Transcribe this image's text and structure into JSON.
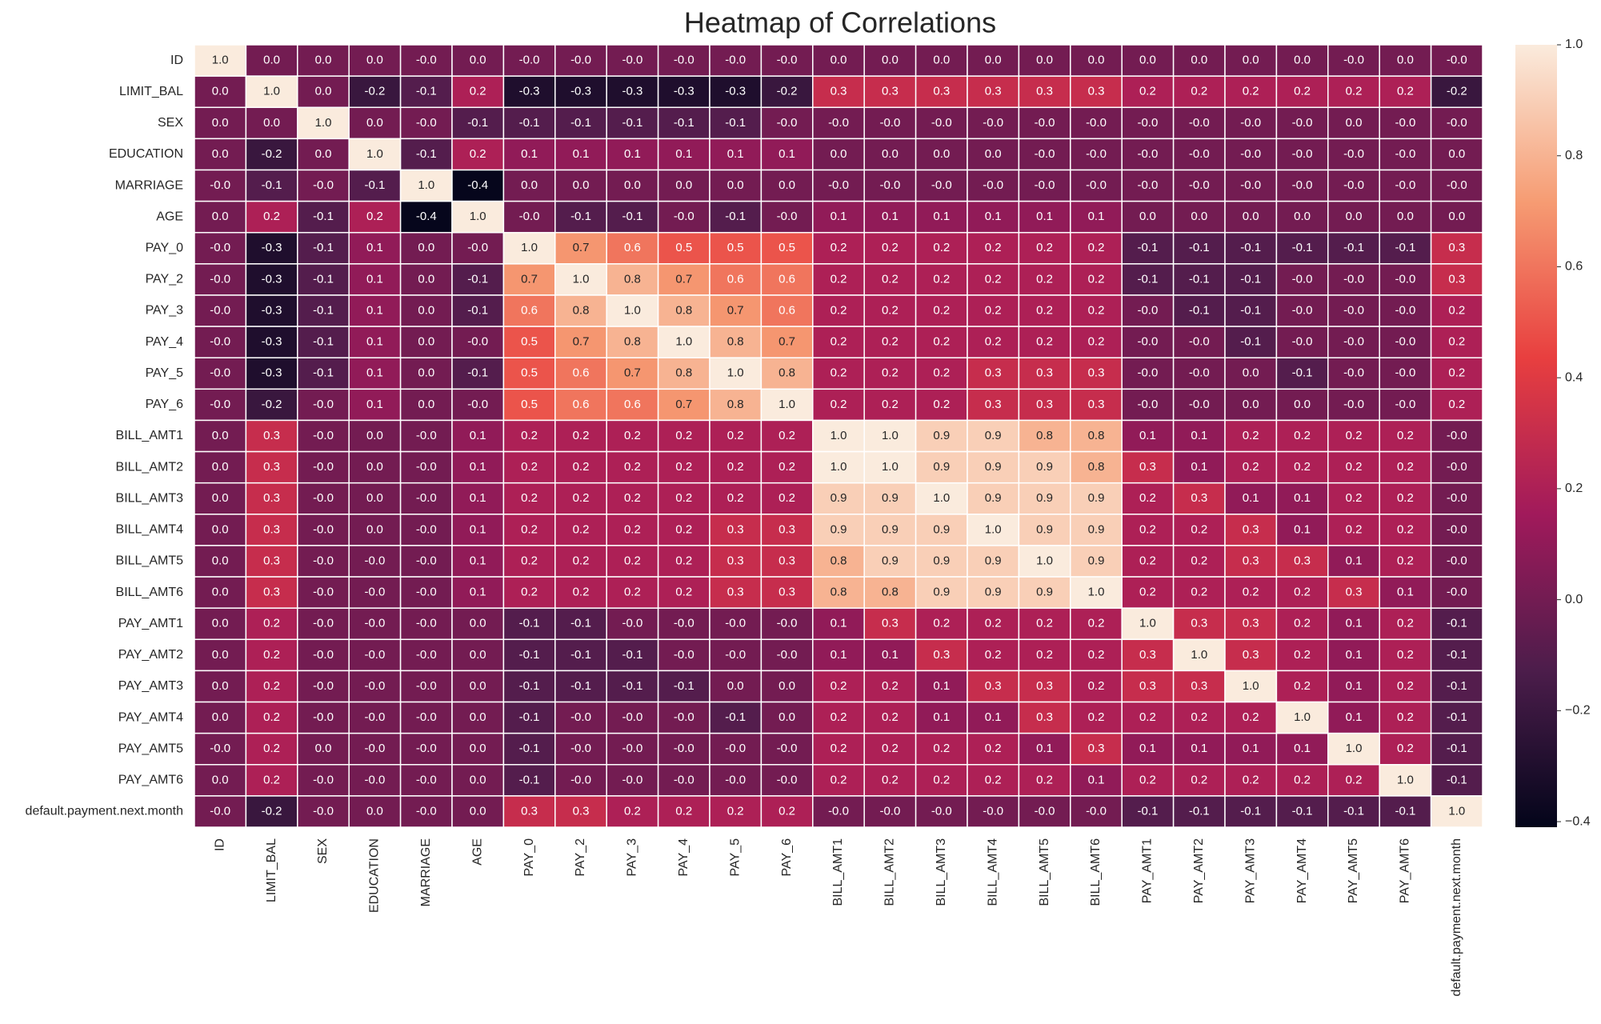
{
  "chart_data": {
    "type": "heatmap",
    "title": "Heatmap of Correlations",
    "categories": [
      "ID",
      "LIMIT_BAL",
      "SEX",
      "EDUCATION",
      "MARRIAGE",
      "AGE",
      "PAY_0",
      "PAY_2",
      "PAY_3",
      "PAY_4",
      "PAY_5",
      "PAY_6",
      "BILL_AMT1",
      "BILL_AMT2",
      "BILL_AMT3",
      "BILL_AMT4",
      "BILL_AMT5",
      "BILL_AMT6",
      "PAY_AMT1",
      "PAY_AMT2",
      "PAY_AMT3",
      "PAY_AMT4",
      "PAY_AMT5",
      "PAY_AMT6",
      "default.payment.next.month"
    ],
    "values": [
      [
        1.0,
        0.0,
        0.0,
        0.0,
        -0.0,
        0.0,
        -0.0,
        -0.0,
        -0.0,
        -0.0,
        -0.0,
        -0.0,
        0.0,
        0.0,
        0.0,
        0.0,
        0.0,
        0.0,
        0.0,
        0.0,
        0.0,
        0.0,
        -0.0,
        0.0,
        -0.0
      ],
      [
        0.0,
        1.0,
        0.0,
        -0.2,
        -0.1,
        0.2,
        -0.3,
        -0.3,
        -0.3,
        -0.3,
        -0.3,
        -0.2,
        0.3,
        0.3,
        0.3,
        0.3,
        0.3,
        0.3,
        0.2,
        0.2,
        0.2,
        0.2,
        0.2,
        0.2,
        -0.2
      ],
      [
        0.0,
        0.0,
        1.0,
        0.0,
        -0.0,
        -0.1,
        -0.1,
        -0.1,
        -0.1,
        -0.1,
        -0.1,
        -0.0,
        -0.0,
        -0.0,
        -0.0,
        -0.0,
        -0.0,
        -0.0,
        -0.0,
        -0.0,
        -0.0,
        -0.0,
        0.0,
        -0.0,
        -0.0
      ],
      [
        0.0,
        -0.2,
        0.0,
        1.0,
        -0.1,
        0.2,
        0.1,
        0.1,
        0.1,
        0.1,
        0.1,
        0.1,
        0.0,
        0.0,
        0.0,
        0.0,
        -0.0,
        -0.0,
        -0.0,
        -0.0,
        -0.0,
        -0.0,
        -0.0,
        -0.0,
        0.0
      ],
      [
        -0.0,
        -0.1,
        -0.0,
        -0.1,
        1.0,
        -0.4,
        0.0,
        0.0,
        0.0,
        0.0,
        0.0,
        0.0,
        -0.0,
        -0.0,
        -0.0,
        -0.0,
        -0.0,
        -0.0,
        -0.0,
        -0.0,
        -0.0,
        -0.0,
        -0.0,
        -0.0,
        -0.0
      ],
      [
        0.0,
        0.2,
        -0.1,
        0.2,
        -0.4,
        1.0,
        -0.0,
        -0.1,
        -0.1,
        -0.0,
        -0.1,
        -0.0,
        0.1,
        0.1,
        0.1,
        0.1,
        0.1,
        0.1,
        0.0,
        0.0,
        0.0,
        0.0,
        0.0,
        0.0,
        0.0
      ],
      [
        -0.0,
        -0.3,
        -0.1,
        0.1,
        0.0,
        -0.0,
        1.0,
        0.7,
        0.6,
        0.5,
        0.5,
        0.5,
        0.2,
        0.2,
        0.2,
        0.2,
        0.2,
        0.2,
        -0.1,
        -0.1,
        -0.1,
        -0.1,
        -0.1,
        -0.1,
        0.3
      ],
      [
        -0.0,
        -0.3,
        -0.1,
        0.1,
        0.0,
        -0.1,
        0.7,
        1.0,
        0.8,
        0.7,
        0.6,
        0.6,
        0.2,
        0.2,
        0.2,
        0.2,
        0.2,
        0.2,
        -0.1,
        -0.1,
        -0.1,
        -0.0,
        -0.0,
        -0.0,
        0.3
      ],
      [
        -0.0,
        -0.3,
        -0.1,
        0.1,
        0.0,
        -0.1,
        0.6,
        0.8,
        1.0,
        0.8,
        0.7,
        0.6,
        0.2,
        0.2,
        0.2,
        0.2,
        0.2,
        0.2,
        -0.0,
        -0.1,
        -0.1,
        -0.0,
        -0.0,
        -0.0,
        0.2
      ],
      [
        -0.0,
        -0.3,
        -0.1,
        0.1,
        0.0,
        -0.0,
        0.5,
        0.7,
        0.8,
        1.0,
        0.8,
        0.7,
        0.2,
        0.2,
        0.2,
        0.2,
        0.2,
        0.2,
        -0.0,
        -0.0,
        -0.1,
        -0.0,
        -0.0,
        -0.0,
        0.2
      ],
      [
        -0.0,
        -0.3,
        -0.1,
        0.1,
        0.0,
        -0.1,
        0.5,
        0.6,
        0.7,
        0.8,
        1.0,
        0.8,
        0.2,
        0.2,
        0.2,
        0.3,
        0.3,
        0.3,
        -0.0,
        -0.0,
        0.0,
        -0.1,
        -0.0,
        -0.0,
        0.2
      ],
      [
        -0.0,
        -0.2,
        -0.0,
        0.1,
        0.0,
        -0.0,
        0.5,
        0.6,
        0.6,
        0.7,
        0.8,
        1.0,
        0.2,
        0.2,
        0.2,
        0.3,
        0.3,
        0.3,
        -0.0,
        -0.0,
        0.0,
        0.0,
        -0.0,
        -0.0,
        0.2
      ],
      [
        0.0,
        0.3,
        -0.0,
        0.0,
        -0.0,
        0.1,
        0.2,
        0.2,
        0.2,
        0.2,
        0.2,
        0.2,
        1.0,
        1.0,
        0.9,
        0.9,
        0.8,
        0.8,
        0.1,
        0.1,
        0.2,
        0.2,
        0.2,
        0.2,
        -0.0
      ],
      [
        0.0,
        0.3,
        -0.0,
        0.0,
        -0.0,
        0.1,
        0.2,
        0.2,
        0.2,
        0.2,
        0.2,
        0.2,
        1.0,
        1.0,
        0.9,
        0.9,
        0.9,
        0.8,
        0.3,
        0.1,
        0.2,
        0.2,
        0.2,
        0.2,
        -0.0
      ],
      [
        0.0,
        0.3,
        -0.0,
        0.0,
        -0.0,
        0.1,
        0.2,
        0.2,
        0.2,
        0.2,
        0.2,
        0.2,
        0.9,
        0.9,
        1.0,
        0.9,
        0.9,
        0.9,
        0.2,
        0.3,
        0.1,
        0.1,
        0.2,
        0.2,
        -0.0
      ],
      [
        0.0,
        0.3,
        -0.0,
        0.0,
        -0.0,
        0.1,
        0.2,
        0.2,
        0.2,
        0.2,
        0.3,
        0.3,
        0.9,
        0.9,
        0.9,
        1.0,
        0.9,
        0.9,
        0.2,
        0.2,
        0.3,
        0.1,
        0.2,
        0.2,
        -0.0
      ],
      [
        0.0,
        0.3,
        -0.0,
        -0.0,
        -0.0,
        0.1,
        0.2,
        0.2,
        0.2,
        0.2,
        0.3,
        0.3,
        0.8,
        0.9,
        0.9,
        0.9,
        1.0,
        0.9,
        0.2,
        0.2,
        0.3,
        0.3,
        0.1,
        0.2,
        -0.0
      ],
      [
        0.0,
        0.3,
        -0.0,
        -0.0,
        -0.0,
        0.1,
        0.2,
        0.2,
        0.2,
        0.2,
        0.3,
        0.3,
        0.8,
        0.8,
        0.9,
        0.9,
        0.9,
        1.0,
        0.2,
        0.2,
        0.2,
        0.2,
        0.3,
        0.1,
        -0.0
      ],
      [
        0.0,
        0.2,
        -0.0,
        -0.0,
        -0.0,
        0.0,
        -0.1,
        -0.1,
        -0.0,
        -0.0,
        -0.0,
        -0.0,
        0.1,
        0.3,
        0.2,
        0.2,
        0.2,
        0.2,
        1.0,
        0.3,
        0.3,
        0.2,
        0.1,
        0.2,
        -0.1
      ],
      [
        0.0,
        0.2,
        -0.0,
        -0.0,
        -0.0,
        0.0,
        -0.1,
        -0.1,
        -0.1,
        -0.0,
        -0.0,
        -0.0,
        0.1,
        0.1,
        0.3,
        0.2,
        0.2,
        0.2,
        0.3,
        1.0,
        0.3,
        0.2,
        0.1,
        0.2,
        -0.1
      ],
      [
        0.0,
        0.2,
        -0.0,
        -0.0,
        -0.0,
        0.0,
        -0.1,
        -0.1,
        -0.1,
        -0.1,
        0.0,
        0.0,
        0.2,
        0.2,
        0.1,
        0.3,
        0.3,
        0.2,
        0.3,
        0.3,
        1.0,
        0.2,
        0.1,
        0.2,
        -0.1
      ],
      [
        0.0,
        0.2,
        -0.0,
        -0.0,
        -0.0,
        0.0,
        -0.1,
        -0.0,
        -0.0,
        -0.0,
        -0.1,
        0.0,
        0.2,
        0.2,
        0.1,
        0.1,
        0.3,
        0.2,
        0.2,
        0.2,
        0.2,
        1.0,
        0.1,
        0.2,
        -0.1
      ],
      [
        -0.0,
        0.2,
        0.0,
        -0.0,
        -0.0,
        0.0,
        -0.1,
        -0.0,
        -0.0,
        -0.0,
        -0.0,
        -0.0,
        0.2,
        0.2,
        0.2,
        0.2,
        0.1,
        0.3,
        0.1,
        0.1,
        0.1,
        0.1,
        1.0,
        0.2,
        -0.1
      ],
      [
        0.0,
        0.2,
        -0.0,
        -0.0,
        -0.0,
        0.0,
        -0.1,
        -0.0,
        -0.0,
        -0.0,
        -0.0,
        -0.0,
        0.2,
        0.2,
        0.2,
        0.2,
        0.2,
        0.1,
        0.2,
        0.2,
        0.2,
        0.2,
        0.2,
        1.0,
        -0.1
      ],
      [
        -0.0,
        -0.2,
        -0.0,
        0.0,
        -0.0,
        0.0,
        0.3,
        0.3,
        0.2,
        0.2,
        0.2,
        0.2,
        -0.0,
        -0.0,
        -0.0,
        -0.0,
        -0.0,
        -0.0,
        -0.1,
        -0.1,
        -0.1,
        -0.1,
        -0.1,
        -0.1,
        1.0
      ]
    ],
    "value_labels": [
      [
        "1.0",
        "0.0",
        "0.0",
        "0.0",
        "-0.0",
        "0.0",
        "-0.0",
        "-0.0",
        "-0.0",
        "-0.0",
        "-0.0",
        "-0.0",
        "0.0",
        "0.0",
        "0.0",
        "0.0",
        "0.0",
        "0.0",
        "0.0",
        "0.0",
        "0.0",
        "0.0",
        "-0.0",
        "0.0",
        "-0.0"
      ],
      [
        "0.0",
        "1.0",
        "0.0",
        "-0.2",
        "-0.1",
        "0.2",
        "-0.3",
        "-0.3",
        "-0.3",
        "-0.3",
        "-0.3",
        "-0.2",
        "0.3",
        "0.3",
        "0.3",
        "0.3",
        "0.3",
        "0.3",
        "0.2",
        "0.2",
        "0.2",
        "0.2",
        "0.2",
        "0.2",
        "-0.2"
      ],
      [
        "0.0",
        "0.0",
        "1.0",
        "0.0",
        "-0.0",
        "-0.1",
        "-0.1",
        "-0.1",
        "-0.1",
        "-0.1",
        "-0.1",
        "-0.0",
        "-0.0",
        "-0.0",
        "-0.0",
        "-0.0",
        "-0.0",
        "-0.0",
        "-0.0",
        "-0.0",
        "-0.0",
        "-0.0",
        "0.0",
        "-0.0",
        "-0.0"
      ],
      [
        "0.0",
        "-0.2",
        "0.0",
        "1.0",
        "-0.1",
        "0.2",
        "0.1",
        "0.1",
        "0.1",
        "0.1",
        "0.1",
        "0.1",
        "0.0",
        "0.0",
        "0.0",
        "0.0",
        "-0.0",
        "-0.0",
        "-0.0",
        "-0.0",
        "-0.0",
        "-0.0",
        "-0.0",
        "-0.0",
        "0.0"
      ],
      [
        "-0.0",
        "-0.1",
        "-0.0",
        "-0.1",
        "1.0",
        "-0.4",
        "0.0",
        "0.0",
        "0.0",
        "0.0",
        "0.0",
        "0.0",
        "-0.0",
        "-0.0",
        "-0.0",
        "-0.0",
        "-0.0",
        "-0.0",
        "-0.0",
        "-0.0",
        "-0.0",
        "-0.0",
        "-0.0",
        "-0.0",
        "-0.0"
      ],
      [
        "0.0",
        "0.2",
        "-0.1",
        "0.2",
        "-0.4",
        "1.0",
        "-0.0",
        "-0.1",
        "-0.1",
        "-0.0",
        "-0.1",
        "-0.0",
        "0.1",
        "0.1",
        "0.1",
        "0.1",
        "0.1",
        "0.1",
        "0.0",
        "0.0",
        "0.0",
        "0.0",
        "0.0",
        "0.0",
        "0.0"
      ],
      [
        "-0.0",
        "-0.3",
        "-0.1",
        "0.1",
        "0.0",
        "-0.0",
        "1.0",
        "0.7",
        "0.6",
        "0.5",
        "0.5",
        "0.5",
        "0.2",
        "0.2",
        "0.2",
        "0.2",
        "0.2",
        "0.2",
        "-0.1",
        "-0.1",
        "-0.1",
        "-0.1",
        "-0.1",
        "-0.1",
        "0.3"
      ],
      [
        "-0.0",
        "-0.3",
        "-0.1",
        "0.1",
        "0.0",
        "-0.1",
        "0.7",
        "1.0",
        "0.8",
        "0.7",
        "0.6",
        "0.6",
        "0.2",
        "0.2",
        "0.2",
        "0.2",
        "0.2",
        "0.2",
        "-0.1",
        "-0.1",
        "-0.1",
        "-0.0",
        "-0.0",
        "-0.0",
        "0.3"
      ],
      [
        "-0.0",
        "-0.3",
        "-0.1",
        "0.1",
        "0.0",
        "-0.1",
        "0.6",
        "0.8",
        "1.0",
        "0.8",
        "0.7",
        "0.6",
        "0.2",
        "0.2",
        "0.2",
        "0.2",
        "0.2",
        "0.2",
        "-0.0",
        "-0.1",
        "-0.1",
        "-0.0",
        "-0.0",
        "-0.0",
        "0.2"
      ],
      [
        "-0.0",
        "-0.3",
        "-0.1",
        "0.1",
        "0.0",
        "-0.0",
        "0.5",
        "0.7",
        "0.8",
        "1.0",
        "0.8",
        "0.7",
        "0.2",
        "0.2",
        "0.2",
        "0.2",
        "0.2",
        "0.2",
        "-0.0",
        "-0.0",
        "-0.1",
        "-0.0",
        "-0.0",
        "-0.0",
        "0.2"
      ],
      [
        "-0.0",
        "-0.3",
        "-0.1",
        "0.1",
        "0.0",
        "-0.1",
        "0.5",
        "0.6",
        "0.7",
        "0.8",
        "1.0",
        "0.8",
        "0.2",
        "0.2",
        "0.2",
        "0.3",
        "0.3",
        "0.3",
        "-0.0",
        "-0.0",
        "0.0",
        "-0.1",
        "-0.0",
        "-0.0",
        "0.2"
      ],
      [
        "-0.0",
        "-0.2",
        "-0.0",
        "0.1",
        "0.0",
        "-0.0",
        "0.5",
        "0.6",
        "0.6",
        "0.7",
        "0.8",
        "1.0",
        "0.2",
        "0.2",
        "0.2",
        "0.3",
        "0.3",
        "0.3",
        "-0.0",
        "-0.0",
        "0.0",
        "0.0",
        "-0.0",
        "-0.0",
        "0.2"
      ],
      [
        "0.0",
        "0.3",
        "-0.0",
        "0.0",
        "-0.0",
        "0.1",
        "0.2",
        "0.2",
        "0.2",
        "0.2",
        "0.2",
        "0.2",
        "1.0",
        "1.0",
        "0.9",
        "0.9",
        "0.8",
        "0.8",
        "0.1",
        "0.1",
        "0.2",
        "0.2",
        "0.2",
        "0.2",
        "-0.0"
      ],
      [
        "0.0",
        "0.3",
        "-0.0",
        "0.0",
        "-0.0",
        "0.1",
        "0.2",
        "0.2",
        "0.2",
        "0.2",
        "0.2",
        "0.2",
        "1.0",
        "1.0",
        "0.9",
        "0.9",
        "0.9",
        "0.8",
        "0.3",
        "0.1",
        "0.2",
        "0.2",
        "0.2",
        "0.2",
        "-0.0"
      ],
      [
        "0.0",
        "0.3",
        "-0.0",
        "0.0",
        "-0.0",
        "0.1",
        "0.2",
        "0.2",
        "0.2",
        "0.2",
        "0.2",
        "0.2",
        "0.9",
        "0.9",
        "1.0",
        "0.9",
        "0.9",
        "0.9",
        "0.2",
        "0.3",
        "0.1",
        "0.1",
        "0.2",
        "0.2",
        "-0.0"
      ],
      [
        "0.0",
        "0.3",
        "-0.0",
        "0.0",
        "-0.0",
        "0.1",
        "0.2",
        "0.2",
        "0.2",
        "0.2",
        "0.3",
        "0.3",
        "0.9",
        "0.9",
        "0.9",
        "1.0",
        "0.9",
        "0.9",
        "0.2",
        "0.2",
        "0.3",
        "0.1",
        "0.2",
        "0.2",
        "-0.0"
      ],
      [
        "0.0",
        "0.3",
        "-0.0",
        "-0.0",
        "-0.0",
        "0.1",
        "0.2",
        "0.2",
        "0.2",
        "0.2",
        "0.3",
        "0.3",
        "0.8",
        "0.9",
        "0.9",
        "0.9",
        "1.0",
        "0.9",
        "0.2",
        "0.2",
        "0.3",
        "0.3",
        "0.1",
        "0.2",
        "-0.0"
      ],
      [
        "0.0",
        "0.3",
        "-0.0",
        "-0.0",
        "-0.0",
        "0.1",
        "0.2",
        "0.2",
        "0.2",
        "0.2",
        "0.3",
        "0.3",
        "0.8",
        "0.8",
        "0.9",
        "0.9",
        "0.9",
        "1.0",
        "0.2",
        "0.2",
        "0.2",
        "0.2",
        "0.3",
        "0.1",
        "-0.0"
      ],
      [
        "0.0",
        "0.2",
        "-0.0",
        "-0.0",
        "-0.0",
        "0.0",
        "-0.1",
        "-0.1",
        "-0.0",
        "-0.0",
        "-0.0",
        "-0.0",
        "0.1",
        "0.3",
        "0.2",
        "0.2",
        "0.2",
        "0.2",
        "1.0",
        "0.3",
        "0.3",
        "0.2",
        "0.1",
        "0.2",
        "-0.1"
      ],
      [
        "0.0",
        "0.2",
        "-0.0",
        "-0.0",
        "-0.0",
        "0.0",
        "-0.1",
        "-0.1",
        "-0.1",
        "-0.0",
        "-0.0",
        "-0.0",
        "0.1",
        "0.1",
        "0.3",
        "0.2",
        "0.2",
        "0.2",
        "0.3",
        "1.0",
        "0.3",
        "0.2",
        "0.1",
        "0.2",
        "-0.1"
      ],
      [
        "0.0",
        "0.2",
        "-0.0",
        "-0.0",
        "-0.0",
        "0.0",
        "-0.1",
        "-0.1",
        "-0.1",
        "-0.1",
        "0.0",
        "0.0",
        "0.2",
        "0.2",
        "0.1",
        "0.3",
        "0.3",
        "0.2",
        "0.3",
        "0.3",
        "1.0",
        "0.2",
        "0.1",
        "0.2",
        "-0.1"
      ],
      [
        "0.0",
        "0.2",
        "-0.0",
        "-0.0",
        "-0.0",
        "0.0",
        "-0.1",
        "-0.0",
        "-0.0",
        "-0.0",
        "-0.1",
        "0.0",
        "0.2",
        "0.2",
        "0.1",
        "0.1",
        "0.3",
        "0.2",
        "0.2",
        "0.2",
        "0.2",
        "1.0",
        "0.1",
        "0.2",
        "-0.1"
      ],
      [
        "-0.0",
        "0.2",
        "0.0",
        "-0.0",
        "-0.0",
        "0.0",
        "-0.1",
        "-0.0",
        "-0.0",
        "-0.0",
        "-0.0",
        "-0.0",
        "0.2",
        "0.2",
        "0.2",
        "0.2",
        "0.1",
        "0.3",
        "0.1",
        "0.1",
        "0.1",
        "0.1",
        "1.0",
        "0.2",
        "-0.1"
      ],
      [
        "0.0",
        "0.2",
        "-0.0",
        "-0.0",
        "-0.0",
        "0.0",
        "-0.1",
        "-0.0",
        "-0.0",
        "-0.0",
        "-0.0",
        "-0.0",
        "0.2",
        "0.2",
        "0.2",
        "0.2",
        "0.2",
        "0.1",
        "0.2",
        "0.2",
        "0.2",
        "0.2",
        "0.2",
        "1.0",
        "-0.1"
      ],
      [
        "-0.0",
        "-0.2",
        "-0.0",
        "0.0",
        "-0.0",
        "0.0",
        "0.3",
        "0.3",
        "0.2",
        "0.2",
        "0.2",
        "0.2",
        "-0.0",
        "-0.0",
        "-0.0",
        "-0.0",
        "-0.0",
        "-0.0",
        "-0.1",
        "-0.1",
        "-0.1",
        "-0.1",
        "-0.1",
        "-0.1",
        "1.0"
      ]
    ],
    "zlim": [
      -0.41,
      1.0
    ],
    "zticks": [
      {
        "value": -0.4,
        "label": "−0.4"
      },
      {
        "value": -0.2,
        "label": "−0.2"
      },
      {
        "value": 0.0,
        "label": "0.0"
      },
      0.2,
      0.4,
      0.6,
      0.8,
      {
        "value": 1.0,
        "label": "1.0"
      }
    ],
    "colormap": [
      "#03051a",
      "#4c1d4b",
      "#a11a5b",
      "#e83f3f",
      "#f69c73",
      "#faebdd"
    ]
  }
}
